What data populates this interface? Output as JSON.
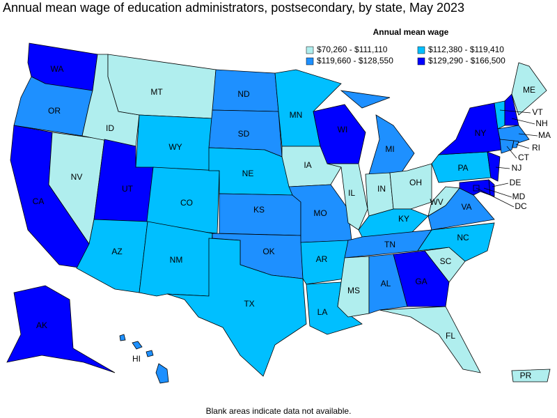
{
  "title": "Annual mean wage of education administrators, postsecondary, by state, May 2023",
  "legend": {
    "title": "Annual mean wage",
    "items": [
      {
        "label": "$70,260 - $111,110",
        "color": "#b0eeee"
      },
      {
        "label": "$112,380 - $119,410",
        "color": "#00bfff"
      },
      {
        "label": "$119,660 - $128,550",
        "color": "#1e90ff"
      },
      {
        "label": "$129,290 - $166,500",
        "color": "#0000ff"
      }
    ]
  },
  "states": [
    {
      "label": "WA",
      "color": "#0000ff"
    },
    {
      "label": "OR",
      "color": "#1e90ff"
    },
    {
      "label": "CA",
      "color": "#0000ff"
    },
    {
      "label": "NV",
      "color": "#b0eeee"
    },
    {
      "label": "ID",
      "color": "#b0eeee"
    },
    {
      "label": "MT",
      "color": "#b0eeee"
    },
    {
      "label": "WY",
      "color": "#00bfff"
    },
    {
      "label": "UT",
      "color": "#0000ff"
    },
    {
      "label": "CO",
      "color": "#00bfff"
    },
    {
      "label": "AZ",
      "color": "#00bfff"
    },
    {
      "label": "NM",
      "color": "#00bfff"
    },
    {
      "label": "ND",
      "color": "#1e90ff"
    },
    {
      "label": "SD",
      "color": "#1e90ff"
    },
    {
      "label": "NE",
      "color": "#00bfff"
    },
    {
      "label": "KS",
      "color": "#1e90ff"
    },
    {
      "label": "OK",
      "color": "#1e90ff"
    },
    {
      "label": "TX",
      "color": "#00bfff"
    },
    {
      "label": "MN",
      "color": "#00bfff"
    },
    {
      "label": "IA",
      "color": "#b0eeee"
    },
    {
      "label": "MO",
      "color": "#1e90ff"
    },
    {
      "label": "AR",
      "color": "#00bfff"
    },
    {
      "label": "LA",
      "color": "#00bfff"
    },
    {
      "label": "WI",
      "color": "#0000ff"
    },
    {
      "label": "IL",
      "color": "#b0eeee"
    },
    {
      "label": "MI",
      "color": "#1e90ff"
    },
    {
      "label": "IN",
      "color": "#b0eeee"
    },
    {
      "label": "OH",
      "color": "#b0eeee"
    },
    {
      "label": "KY",
      "color": "#00bfff"
    },
    {
      "label": "TN",
      "color": "#1e90ff"
    },
    {
      "label": "MS",
      "color": "#b0eeee"
    },
    {
      "label": "AL",
      "color": "#1e90ff"
    },
    {
      "label": "GA",
      "color": "#0000ff"
    },
    {
      "label": "FL",
      "color": "#b0eeee"
    },
    {
      "label": "SC",
      "color": "#b0eeee"
    },
    {
      "label": "NC",
      "color": "#00bfff"
    },
    {
      "label": "VA",
      "color": "#1e90ff"
    },
    {
      "label": "WV",
      "color": "#b0eeee"
    },
    {
      "label": "PA",
      "color": "#00bfff"
    },
    {
      "label": "NY",
      "color": "#0000ff"
    },
    {
      "label": "NJ",
      "color": "#0000ff"
    },
    {
      "label": "DE",
      "color": "#0000ff"
    },
    {
      "label": "MD",
      "color": "#0000ff"
    },
    {
      "label": "DC",
      "color": "#0000ff"
    },
    {
      "label": "VT",
      "color": "#00bfff"
    },
    {
      "label": "NH",
      "color": "#0000ff"
    },
    {
      "label": "ME",
      "color": "#b0eeee"
    },
    {
      "label": "MA",
      "color": "#1e90ff"
    },
    {
      "label": "CT",
      "color": "#1e90ff"
    },
    {
      "label": "RI",
      "color": "#1e90ff"
    },
    {
      "label": "AK",
      "color": "#0000ff"
    },
    {
      "label": "HI",
      "color": "#1e90ff"
    },
    {
      "label": "PR",
      "color": "#b0eeee"
    }
  ],
  "footnote": "Blank areas indicate data not available."
}
